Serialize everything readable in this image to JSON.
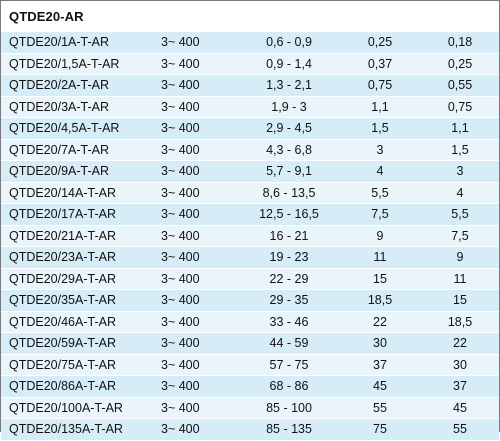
{
  "title": "QTDE20-AR",
  "rows": [
    [
      "QTDE20/1A-T-AR",
      "3~ 400",
      "0,6 - 0,9",
      "0,25",
      "0,18"
    ],
    [
      "QTDE20/1,5A-T-AR",
      "3~ 400",
      "0,9 - 1,4",
      "0,37",
      "0,25"
    ],
    [
      "QTDE20/2A-T-AR",
      "3~ 400",
      "1,3 - 2,1",
      "0,75",
      "0,55"
    ],
    [
      "QTDE20/3A-T-AR",
      "3~ 400",
      "1,9 - 3",
      "1,1",
      "0,75"
    ],
    [
      "QTDE20/4,5A-T-AR",
      "3~ 400",
      "2,9 - 4,5",
      "1,5",
      "1,1"
    ],
    [
      "QTDE20/7A-T-AR",
      "3~ 400",
      "4,3 - 6,8",
      "3",
      "1,5"
    ],
    [
      "QTDE20/9A-T-AR",
      "3~ 400",
      "5,7 - 9,1",
      "4",
      "3"
    ],
    [
      "QTDE20/14A-T-AR",
      "3~ 400",
      "8,6 - 13,5",
      "5,5",
      "4"
    ],
    [
      "QTDE20/17A-T-AR",
      "3~ 400",
      "12,5 - 16,5",
      "7,5",
      "5,5"
    ],
    [
      "QTDE20/21A-T-AR",
      "3~ 400",
      "16 - 21",
      "9",
      "7,5"
    ],
    [
      "QTDE20/23A-T-AR",
      "3~ 400",
      "19 - 23",
      "11",
      "9"
    ],
    [
      "QTDE20/29A-T-AR",
      "3~ 400",
      "22 - 29",
      "15",
      "11"
    ],
    [
      "QTDE20/35A-T-AR",
      "3~ 400",
      "29 - 35",
      "18,5",
      "15"
    ],
    [
      "QTDE20/46A-T-AR",
      "3~ 400",
      "33 - 46",
      "22",
      "18,5"
    ],
    [
      "QTDE20/59A-T-AR",
      "3~ 400",
      "44 - 59",
      "30",
      "22"
    ],
    [
      "QTDE20/75A-T-AR",
      "3~ 400",
      "57 - 75",
      "37",
      "30"
    ],
    [
      "QTDE20/86A-T-AR",
      "3~ 400",
      "68 - 86",
      "45",
      "37"
    ],
    [
      "QTDE20/100A-T-AR",
      "3~ 400",
      "85 - 100",
      "55",
      "45"
    ],
    [
      "QTDE20/135A-T-AR",
      "3~ 400",
      "85 - 135",
      "75",
      "55"
    ]
  ]
}
